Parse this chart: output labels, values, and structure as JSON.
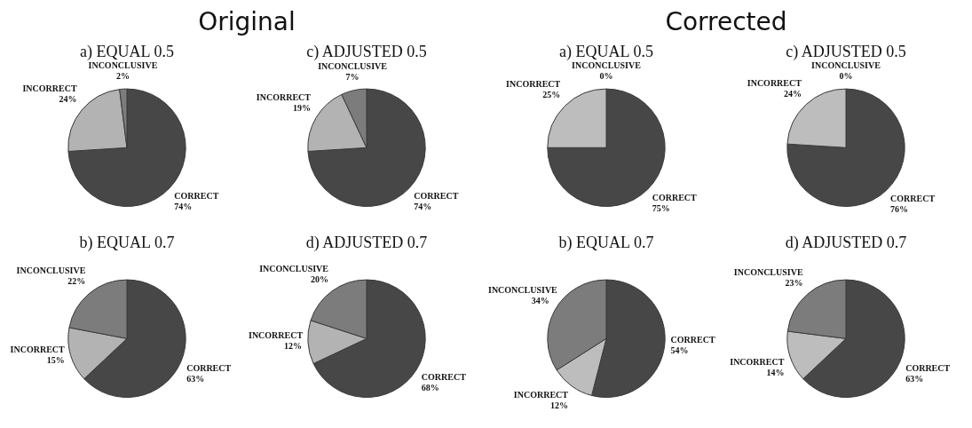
{
  "chart_data": [
    {
      "type": "pie",
      "title": "a) EQUAL 0.5",
      "annotations": [
        "Original"
      ],
      "categories": [
        "CORRECT",
        "INCORRECT",
        "INCONCLUSIVE"
      ],
      "values": [
        74,
        24,
        2
      ],
      "value_labels": [
        "74%",
        "24%",
        "2%"
      ],
      "colors": [
        "#474747",
        "#b3b3b3",
        "#7c7c7c"
      ]
    },
    {
      "type": "pie",
      "title": "c) ADJUSTED 0.5",
      "categories": [
        "CORRECT",
        "INCORRECT",
        "INCONCLUSIVE"
      ],
      "values": [
        74,
        19,
        7
      ],
      "value_labels": [
        "74%",
        "19%",
        "7%"
      ],
      "colors": [
        "#474747",
        "#b3b3b3",
        "#7c7c7c"
      ]
    },
    {
      "type": "pie",
      "title": "b) EQUAL 0.7",
      "categories": [
        "CORRECT",
        "INCORRECT",
        "INCONCLUSIVE"
      ],
      "values": [
        63,
        15,
        22
      ],
      "value_labels": [
        "63%",
        "15%",
        "22%"
      ],
      "colors": [
        "#474747",
        "#b3b3b3",
        "#7c7c7c"
      ]
    },
    {
      "type": "pie",
      "title": "d) ADJUSTED 0.7",
      "categories": [
        "CORRECT",
        "INCORRECT",
        "INCONCLUSIVE"
      ],
      "values": [
        68,
        12,
        20
      ],
      "value_labels": [
        "68%",
        "12%",
        "20%"
      ],
      "colors": [
        "#474747",
        "#b3b3b3",
        "#7c7c7c"
      ]
    },
    {
      "type": "pie",
      "title": "a) EQUAL 0.5",
      "annotations": [
        "Corrected"
      ],
      "categories": [
        "CORRECT",
        "INCORRECT",
        "INCONCLUSIVE"
      ],
      "values": [
        75,
        25,
        0
      ],
      "value_labels": [
        "75%",
        "25%",
        "0%"
      ],
      "colors": [
        "#474747",
        "#bdbdbd",
        "#7c7c7c"
      ]
    },
    {
      "type": "pie",
      "title": "c) ADJUSTED 0.5",
      "categories": [
        "CORRECT",
        "INCORRECT",
        "INCONCLUSIVE"
      ],
      "values": [
        76,
        24,
        0
      ],
      "value_labels": [
        "76%",
        "24%",
        "0%"
      ],
      "colors": [
        "#474747",
        "#bdbdbd",
        "#7c7c7c"
      ]
    },
    {
      "type": "pie",
      "title": "b) EQUAL 0.7",
      "categories": [
        "CORRECT",
        "INCORRECT",
        "INCONCLUSIVE"
      ],
      "values": [
        54,
        12,
        34
      ],
      "value_labels": [
        "54%",
        "12%",
        "34%"
      ],
      "colors": [
        "#474747",
        "#bdbdbd",
        "#7c7c7c"
      ]
    },
    {
      "type": "pie",
      "title": "d) ADJUSTED 0.7",
      "categories": [
        "CORRECT",
        "INCORRECT",
        "INCONCLUSIVE"
      ],
      "values": [
        63,
        14,
        23
      ],
      "value_labels": [
        "63%",
        "14%",
        "23%"
      ],
      "colors": [
        "#474747",
        "#bdbdbd",
        "#7c7c7c"
      ]
    }
  ]
}
